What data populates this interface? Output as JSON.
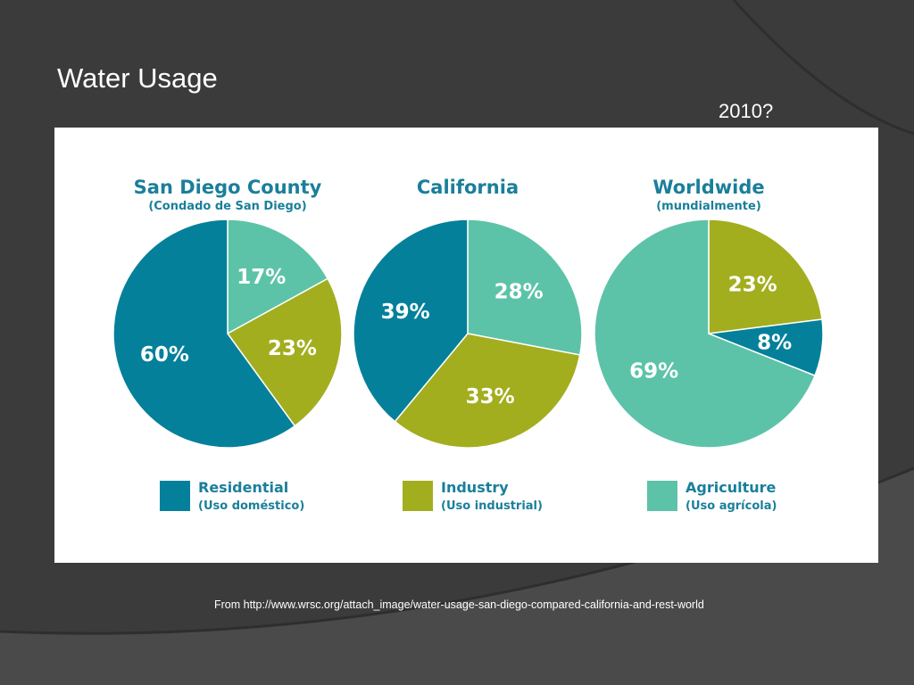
{
  "slide": {
    "title": "Water Usage",
    "year_note": "2010?",
    "source": "From http://www.wrsc.org/attach_image/water-usage-san-diego-compared-california-and-rest-world"
  },
  "colors": {
    "residential": "#05809a",
    "industry": "#a2ae1e",
    "agriculture": "#5dc3a8",
    "heading": "#1a7f9a"
  },
  "chart_data": {
    "type": "pie",
    "charts": [
      {
        "title": "San Diego County",
        "subtitle": "(Condado de San Diego)",
        "slices": [
          {
            "category": "Agriculture",
            "value": 17,
            "label": "17%"
          },
          {
            "category": "Industry",
            "value": 23,
            "label": "23%"
          },
          {
            "category": "Residential",
            "value": 60,
            "label": "60%"
          }
        ]
      },
      {
        "title": "California",
        "subtitle": "",
        "slices": [
          {
            "category": "Agriculture",
            "value": 28,
            "label": "28%"
          },
          {
            "category": "Industry",
            "value": 33,
            "label": "33%"
          },
          {
            "category": "Residential",
            "value": 39,
            "label": "39%"
          }
        ]
      },
      {
        "title": "Worldwide",
        "subtitle": "(mundialmente)",
        "slices": [
          {
            "category": "Industry",
            "value": 23,
            "label": "23%"
          },
          {
            "category": "Residential",
            "value": 8,
            "label": "8%"
          },
          {
            "category": "Agriculture",
            "value": 69,
            "label": "69%"
          }
        ]
      }
    ],
    "legend": [
      {
        "category": "Residential",
        "label": "Residential",
        "sublabel": "(Uso doméstico)"
      },
      {
        "category": "Industry",
        "label": "Industry",
        "sublabel": "(Uso industrial)"
      },
      {
        "category": "Agriculture",
        "label": "Agriculture",
        "sublabel": "(Uso agrícola)"
      }
    ]
  }
}
